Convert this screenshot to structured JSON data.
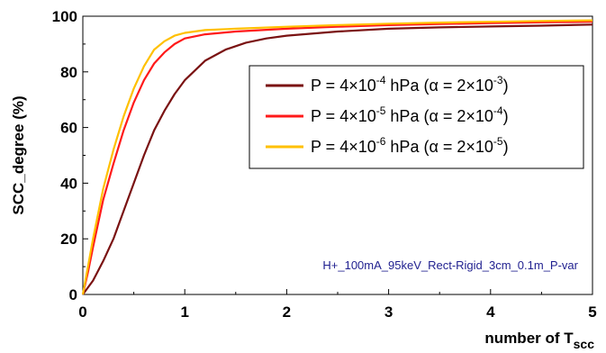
{
  "chart_data": {
    "type": "line",
    "title": "",
    "xlabel": "number of T",
    "xlabel_sub": "scc",
    "ylabel": "SCC_degree (%)",
    "xlim": [
      0,
      5
    ],
    "ylim": [
      0,
      100
    ],
    "x_ticks": [
      "0",
      "1",
      "2",
      "3",
      "4",
      "5"
    ],
    "y_ticks": [
      "0",
      "20",
      "40",
      "60",
      "80",
      "100"
    ],
    "grid": false,
    "legend_position": "right",
    "annotation": "H+_100mA_95keV_Rect-Rigid_3cm_0.1m_P-var",
    "series": [
      {
        "name": "P = 4×10^-4 hPa (α = 2×10^-3)",
        "color": "#7a1212",
        "legend_parts": [
          "P = 4×10",
          "-4",
          " hPa  (α = 2×10",
          "-3",
          ")"
        ],
        "x": [
          0,
          0.1,
          0.2,
          0.3,
          0.4,
          0.5,
          0.6,
          0.7,
          0.8,
          0.9,
          1.0,
          1.2,
          1.4,
          1.6,
          1.8,
          2.0,
          2.5,
          3.0,
          3.5,
          4.0,
          4.5,
          5.0
        ],
        "values": [
          0,
          5,
          12,
          20,
          30,
          40,
          50,
          59,
          66,
          72,
          77,
          84,
          88,
          90.5,
          92,
          93,
          94.5,
          95.5,
          96,
          96.3,
          96.6,
          97
        ]
      },
      {
        "name": "P = 4×10^-5 hPa (α = 2×10^-4)",
        "color": "#ff1a1a",
        "legend_parts": [
          "P = 4×10",
          "-5",
          " hPa  (α = 2×10",
          "-4",
          ")"
        ],
        "x": [
          0,
          0.05,
          0.1,
          0.2,
          0.3,
          0.4,
          0.5,
          0.6,
          0.7,
          0.8,
          0.9,
          1.0,
          1.2,
          1.5,
          2.0,
          2.5,
          3.0,
          3.5,
          4.0,
          4.5,
          5.0
        ],
        "values": [
          0,
          8,
          17,
          34,
          47,
          59,
          69,
          77,
          83,
          87,
          90,
          92,
          93.5,
          94.5,
          95.5,
          96.2,
          96.8,
          97.2,
          97.5,
          97.8,
          98
        ]
      },
      {
        "name": "P = 4×10^-6 hPa (α = 2×10^-5)",
        "color": "#ffc000",
        "legend_parts": [
          "P = 4×10",
          "-6",
          " hPa  (α = 2×10",
          "-5",
          ")"
        ],
        "x": [
          0,
          0.05,
          0.1,
          0.2,
          0.3,
          0.4,
          0.5,
          0.6,
          0.7,
          0.8,
          0.9,
          1.0,
          1.2,
          1.5,
          2.0,
          2.5,
          3.0,
          3.5,
          4.0,
          4.5,
          5.0
        ],
        "values": [
          0,
          10,
          20,
          38,
          52,
          64,
          74,
          82,
          88,
          91,
          93,
          94,
          95,
          95.5,
          96.2,
          96.8,
          97.3,
          97.7,
          98,
          98.3,
          98.5
        ]
      }
    ]
  }
}
